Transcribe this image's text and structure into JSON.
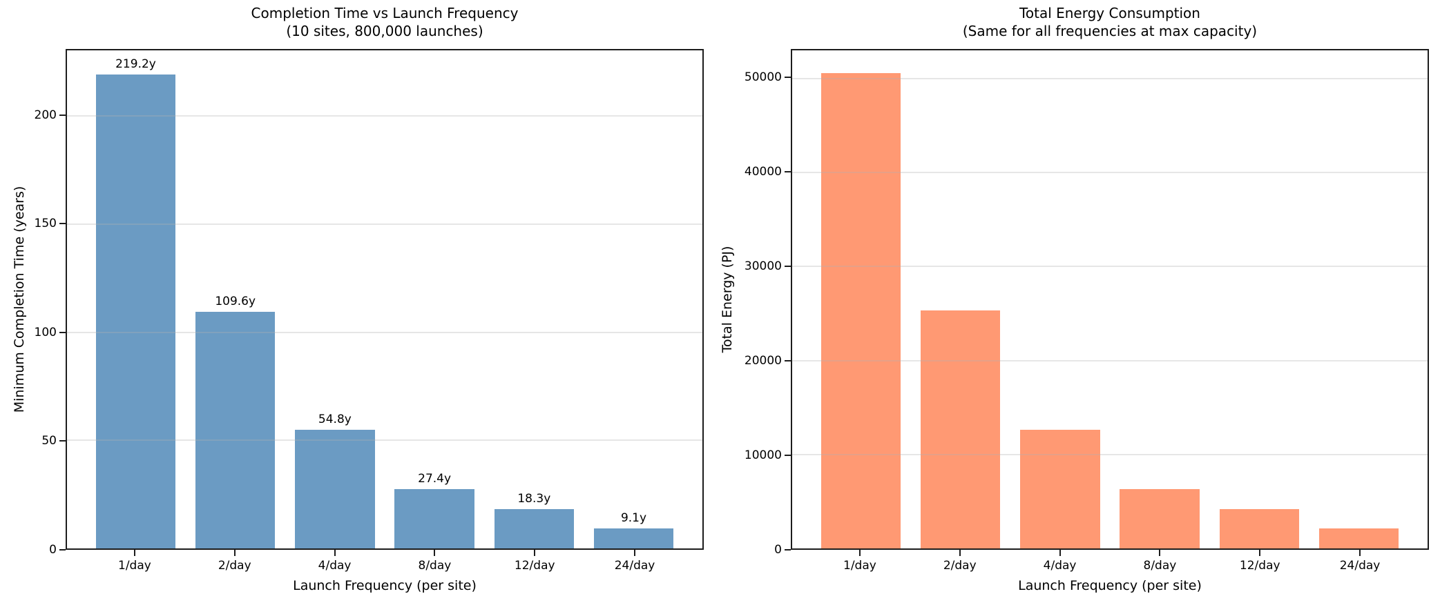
{
  "figure": {
    "background": "#ffffff",
    "text_color": "#000000",
    "spine_color": "#1c1c1c",
    "grid_color": "#b0b0b0"
  },
  "chart_data": [
    {
      "type": "bar",
      "title": "Completion Time vs Launch Frequency",
      "subtitle": "(10 sites, 800,000 launches)",
      "xlabel": "Launch Frequency (per site)",
      "ylabel": "Minimum Completion Time (years)",
      "categories": [
        "1/day",
        "2/day",
        "4/day",
        "8/day",
        "12/day",
        "24/day"
      ],
      "values": [
        219.2,
        109.6,
        54.8,
        27.4,
        18.3,
        9.1
      ],
      "bar_labels": [
        "219.2y",
        "109.6y",
        "54.8y",
        "27.4y",
        "18.3y",
        "9.1y"
      ],
      "bar_color": "#6B9BC3",
      "yticks": [
        0,
        50,
        100,
        150,
        200
      ],
      "ytick_labels": [
        "0",
        "50",
        "100",
        "150",
        "200"
      ],
      "ylim": [
        0,
        230.4
      ],
      "grid": true,
      "legend": "none"
    },
    {
      "type": "bar",
      "title": "Total Energy Consumption",
      "subtitle": "(Same for all frequencies at max capacity)",
      "xlabel": "Launch Frequency (per site)",
      "ylabel": "Total Energy (PJ)",
      "categories": [
        "1/day",
        "2/day",
        "4/day",
        "8/day",
        "12/day",
        "24/day"
      ],
      "values": [
        50600,
        25300,
        12650,
        6325,
        4217,
        2108
      ],
      "bar_labels": null,
      "bar_color": "#FF9973",
      "yticks": [
        0,
        10000,
        20000,
        30000,
        40000,
        50000
      ],
      "ytick_labels": [
        "0",
        "10000",
        "20000",
        "30000",
        "40000",
        "50000"
      ],
      "ylim": [
        0,
        53000
      ],
      "grid": true,
      "legend": "none"
    }
  ]
}
